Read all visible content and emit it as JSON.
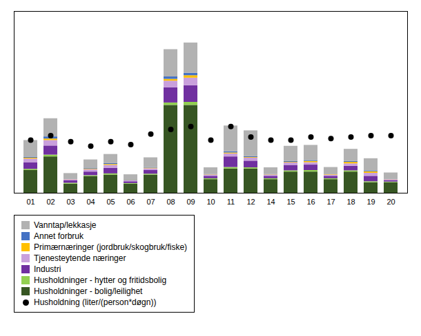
{
  "chart_data": {
    "type": "bar",
    "stacked": true,
    "categories": [
      "01",
      "02",
      "03",
      "04",
      "05",
      "06",
      "07",
      "08",
      "09",
      "10",
      "11",
      "12",
      "14",
      "15",
      "16",
      "17",
      "18",
      "19",
      "20"
    ],
    "series": [
      {
        "name": "Vanntap/lekkasje",
        "type": "bar",
        "color": "#b2b2b2",
        "values": [
          55,
          60,
          18,
          28,
          30,
          18,
          32,
          90,
          100,
          22,
          85,
          85,
          22,
          50,
          50,
          22,
          40,
          40,
          20
        ]
      },
      {
        "name": "Annet forbruk",
        "type": "bar",
        "color": "#4472c4",
        "values": [
          3,
          7,
          1,
          2,
          3,
          1,
          2,
          8,
          8,
          1,
          4,
          3,
          1,
          3,
          3,
          1,
          3,
          3,
          1
        ]
      },
      {
        "name": "Primærnæringer (jordbruk/skogbruk/fiske)",
        "type": "bar",
        "color": "#ffc000",
        "values": [
          3,
          5,
          1,
          2,
          3,
          1,
          2,
          6,
          8,
          1,
          3,
          2,
          1,
          2,
          4,
          2,
          5,
          5,
          1
        ]
      },
      {
        "name": "Tjenesteytende næringer",
        "type": "bar",
        "color": "#c9a0dc",
        "values": [
          12,
          18,
          4,
          8,
          10,
          3,
          6,
          22,
          25,
          4,
          10,
          10,
          4,
          8,
          8,
          4,
          8,
          10,
          3
        ]
      },
      {
        "name": "Industri",
        "type": "bar",
        "color": "#7030a0",
        "values": [
          22,
          30,
          8,
          12,
          18,
          6,
          12,
          50,
          55,
          8,
          35,
          22,
          8,
          18,
          18,
          8,
          15,
          18,
          5
        ]
      },
      {
        "name": "Husholdninger - hytter og fritidsbolig",
        "type": "bar",
        "color": "#92d050",
        "values": [
          4,
          6,
          3,
          3,
          4,
          2,
          3,
          8,
          10,
          3,
          5,
          4,
          3,
          4,
          5,
          3,
          4,
          3,
          2
        ]
      },
      {
        "name": "Husholdninger - bolig/leilighet",
        "type": "bar",
        "color": "#375623",
        "values": [
          75,
          120,
          30,
          55,
          60,
          30,
          60,
          290,
          290,
          45,
          80,
          80,
          45,
          70,
          70,
          45,
          70,
          35,
          35
        ]
      },
      {
        "name": "Husholdning (liter/(person*døgn))",
        "type": "scatter",
        "marker": "circle",
        "color": "#000000",
        "values": [
          175,
          190,
          170,
          155,
          170,
          160,
          195,
          210,
          220,
          175,
          220,
          185,
          175,
          175,
          185,
          180,
          185,
          190,
          190
        ]
      }
    ],
    "ylim": [
      0,
      600
    ],
    "grid": false,
    "tick_labels": "x",
    "legend": "bottom-left"
  }
}
